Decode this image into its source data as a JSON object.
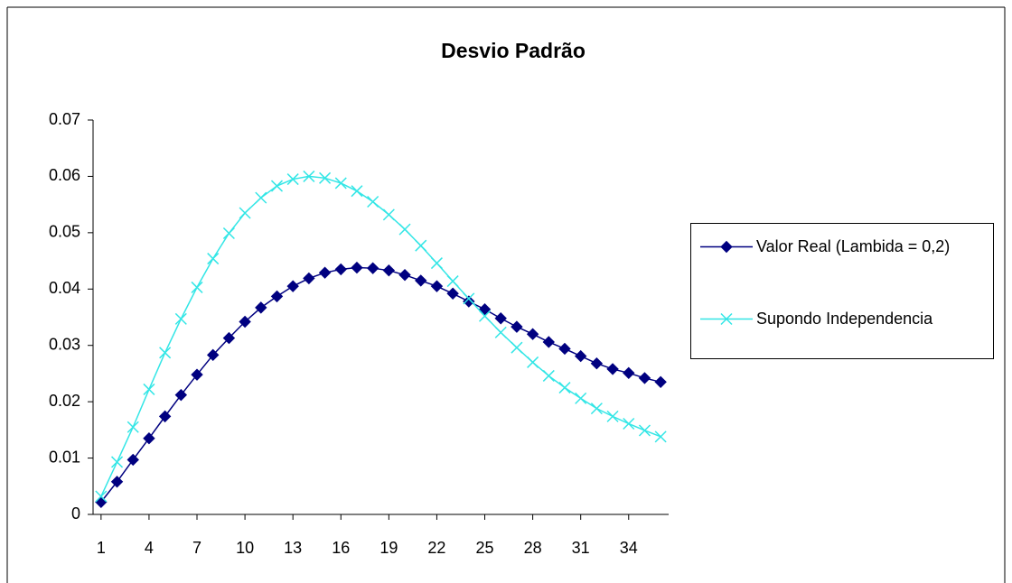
{
  "chart_data": {
    "type": "line",
    "title": "Desvio Padrão",
    "categories": [
      1,
      null,
      null,
      4,
      null,
      null,
      7,
      null,
      null,
      10,
      null,
      null,
      13,
      null,
      null,
      16,
      null,
      null,
      19,
      null,
      null,
      22,
      null,
      null,
      25,
      null,
      null,
      28,
      null,
      null,
      31,
      null,
      null,
      34,
      null,
      null
    ],
    "series": [
      {
        "name": "Valor Real (Lambida = 0,2)",
        "color": "#000080",
        "marker": "diamond",
        "values": [
          0.0022,
          0.0058,
          0.0097,
          0.0135,
          0.0174,
          0.0212,
          0.0248,
          0.0283,
          0.0313,
          0.0342,
          0.0367,
          0.0387,
          0.0405,
          0.0419,
          0.0429,
          0.0435,
          0.0438,
          0.0437,
          0.0433,
          0.0425,
          0.0415,
          0.0405,
          0.0392,
          0.0378,
          0.0364,
          0.0348,
          0.0333,
          0.032,
          0.0306,
          0.0294,
          0.0281,
          0.0268,
          0.0258,
          0.0251,
          0.0242,
          0.0235
        ]
      },
      {
        "name": "Supondo Independencia",
        "color": "#33e6e6",
        "marker": "x",
        "values": [
          0.0032,
          0.0093,
          0.0155,
          0.0222,
          0.0287,
          0.0347,
          0.0403,
          0.0454,
          0.0499,
          0.0535,
          0.0562,
          0.0583,
          0.0595,
          0.06,
          0.0597,
          0.0588,
          0.0574,
          0.0555,
          0.0532,
          0.0506,
          0.0477,
          0.0446,
          0.0414,
          0.0383,
          0.0352,
          0.0323,
          0.0296,
          0.027,
          0.0246,
          0.0225,
          0.0206,
          0.0188,
          0.0174,
          0.0161,
          0.0149,
          0.0138
        ]
      }
    ],
    "ylim": [
      0,
      0.07
    ],
    "yticks": [
      0,
      0.01,
      0.02,
      0.03,
      0.04,
      0.05,
      0.06,
      0.07
    ],
    "grid": false,
    "legend": "right"
  }
}
